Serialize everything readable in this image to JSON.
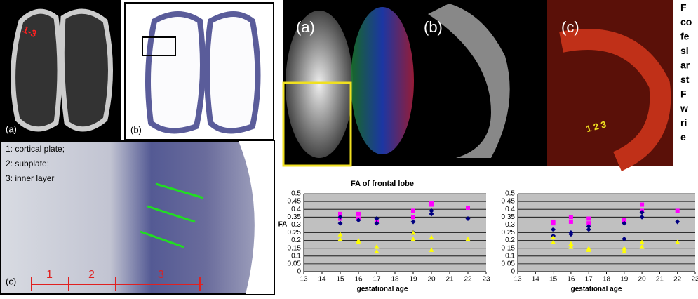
{
  "left_panels": {
    "a_label": "(a)",
    "a_marker": "1-3",
    "b_label": "(b)",
    "c_label": "(c)",
    "c_legend": [
      "1: cortical plate;",
      "2: subplate;",
      "3: inner layer"
    ],
    "c_layers": [
      "1",
      "2",
      "3"
    ]
  },
  "right_panels": {
    "labels": [
      "(a)",
      "(b)",
      "(c)"
    ],
    "layer_marker": "1 2 3"
  },
  "caption_fragment": [
    "F",
    "co",
    "fe",
    "sl",
    "ar",
    "st",
    "F",
    "w",
    "ri",
    "e"
  ],
  "chart_data": [
    {
      "type": "scatter",
      "title": "FA of frontal lobe",
      "x_label": "gestational age",
      "y_label": "FA",
      "xlim": [
        13,
        23
      ],
      "xticks": [
        13,
        14,
        15,
        16,
        17,
        18,
        19,
        20,
        21,
        22,
        23
      ],
      "ylim": [
        0,
        0.5
      ],
      "yticks": [
        0,
        0.05,
        0.1,
        0.15,
        0.2,
        0.25,
        0.3,
        0.35,
        0.4,
        0.45,
        0.5
      ],
      "grid": true,
      "series": [
        {
          "color": "#ff00ff",
          "marker": "square",
          "x": [
            15,
            15,
            16,
            16,
            17,
            19,
            19,
            20,
            20,
            22
          ],
          "values": [
            0.37,
            0.34,
            0.37,
            0.34,
            0.32,
            0.39,
            0.35,
            0.44,
            0.43,
            0.41
          ]
        },
        {
          "color": "#000080",
          "marker": "diamond",
          "x": [
            15,
            15,
            16,
            17,
            17,
            19,
            19,
            20,
            20,
            22
          ],
          "values": [
            0.31,
            0.35,
            0.33,
            0.34,
            0.31,
            0.32,
            0.25,
            0.39,
            0.37,
            0.34
          ]
        },
        {
          "color": "#ffff00",
          "marker": "triangle",
          "x": [
            15,
            15,
            16,
            16,
            17,
            17,
            19,
            19,
            20,
            20,
            22
          ],
          "values": [
            0.24,
            0.21,
            0.2,
            0.19,
            0.16,
            0.13,
            0.25,
            0.21,
            0.22,
            0.14,
            0.21
          ]
        }
      ]
    },
    {
      "type": "scatter",
      "x_label": "gestational age",
      "xlim": [
        13,
        23
      ],
      "xticks": [
        13,
        14,
        15,
        16,
        17,
        18,
        19,
        20,
        21,
        22,
        23
      ],
      "ylim": [
        0,
        0.5
      ],
      "yticks": [
        0,
        0.05,
        0.1,
        0.15,
        0.2,
        0.25,
        0.3,
        0.35,
        0.4,
        0.45,
        0.5
      ],
      "grid": true,
      "series": [
        {
          "color": "#ff00ff",
          "marker": "square",
          "x": [
            15,
            15,
            16,
            16,
            17,
            17,
            19,
            19,
            20,
            20,
            22
          ],
          "values": [
            0.32,
            0.31,
            0.35,
            0.32,
            0.34,
            0.31,
            0.33,
            0.32,
            0.43,
            0.39,
            0.39
          ]
        },
        {
          "color": "#000080",
          "marker": "diamond",
          "x": [
            15,
            15,
            16,
            16,
            17,
            17,
            19,
            19,
            20,
            20,
            22
          ],
          "values": [
            0.27,
            0.23,
            0.25,
            0.24,
            0.29,
            0.27,
            0.31,
            0.21,
            0.38,
            0.35,
            0.32
          ]
        },
        {
          "color": "#ffff00",
          "marker": "triangle",
          "x": [
            15,
            15,
            16,
            16,
            17,
            17,
            19,
            19,
            20,
            20,
            22
          ],
          "values": [
            0.22,
            0.19,
            0.18,
            0.16,
            0.15,
            0.14,
            0.15,
            0.13,
            0.19,
            0.16,
            0.19
          ]
        }
      ]
    }
  ]
}
